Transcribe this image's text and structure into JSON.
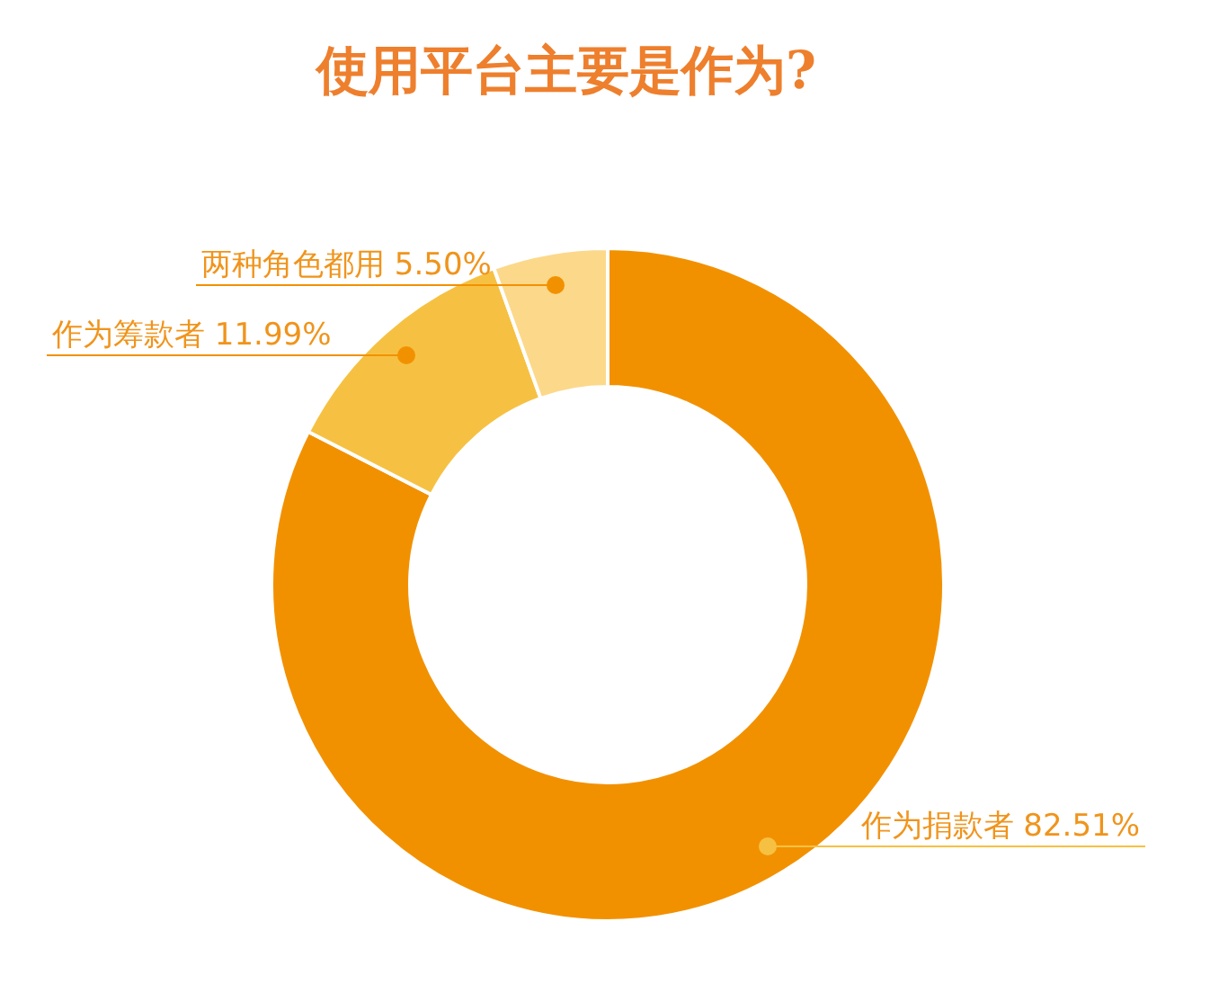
{
  "chart_data": {
    "type": "donut",
    "title": "使用平台主要是作为?",
    "categories": [
      "作为捐款者",
      "作为筹款者",
      "两种角色都用"
    ],
    "values": [
      82.51,
      11.99,
      5.5
    ],
    "colors": [
      "#f29100",
      "#f6c142",
      "#fcd88a"
    ],
    "value_labels": [
      "82.51%",
      "11.99%",
      "5.50%"
    ]
  }
}
